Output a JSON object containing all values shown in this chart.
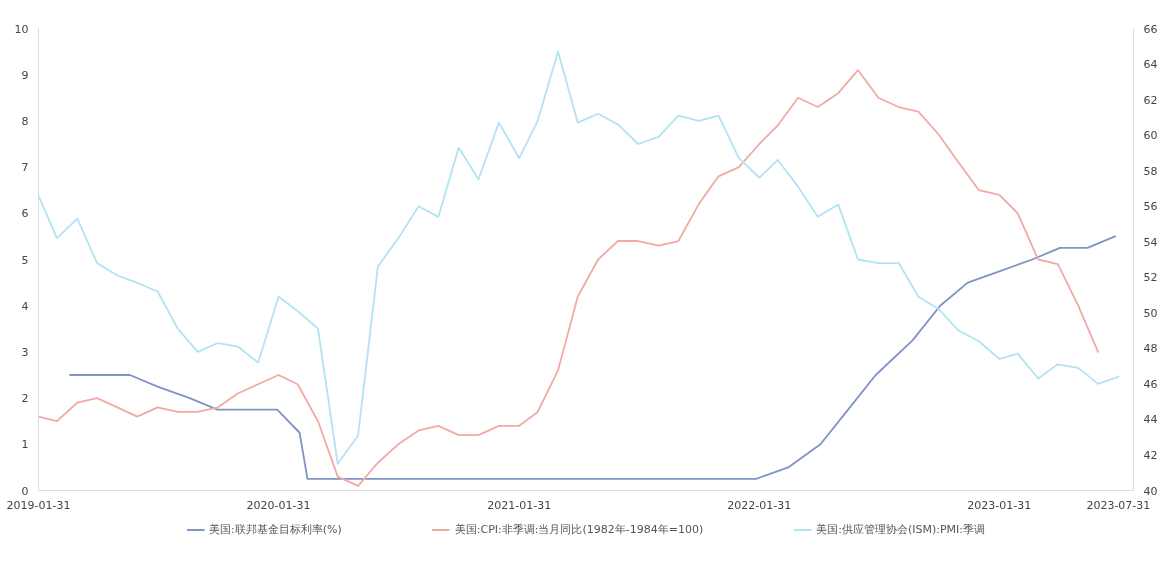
{
  "chart_data": {
    "type": "line",
    "x": [
      "2019-01-31",
      "2019-02-28",
      "2019-03-31",
      "2019-04-30",
      "2019-05-31",
      "2019-06-30",
      "2019-07-31",
      "2019-08-31",
      "2019-09-30",
      "2019-10-31",
      "2019-11-30",
      "2019-12-31",
      "2020-01-31",
      "2020-02-29",
      "2020-03-31",
      "2020-04-30",
      "2020-05-31",
      "2020-06-30",
      "2020-07-31",
      "2020-08-31",
      "2020-09-30",
      "2020-10-31",
      "2020-11-30",
      "2020-12-31",
      "2021-01-31",
      "2021-02-28",
      "2021-03-31",
      "2021-04-30",
      "2021-05-31",
      "2021-06-30",
      "2021-07-31",
      "2021-08-31",
      "2021-09-30",
      "2021-10-31",
      "2021-11-30",
      "2021-12-31",
      "2022-01-31",
      "2022-02-28",
      "2022-03-31",
      "2022-04-30",
      "2022-05-31",
      "2022-06-30",
      "2022-07-31",
      "2022-08-31",
      "2022-09-30",
      "2022-10-31",
      "2022-11-30",
      "2022-12-31",
      "2023-01-31",
      "2023-02-28",
      "2023-03-31",
      "2023-04-30",
      "2023-05-31",
      "2023-06-30",
      "2023-07-31"
    ],
    "series": [
      {
        "name": "美国:联邦基金目标利率(%)",
        "color": "#7f94c4",
        "x": [
          "2019-03-20",
          "2019-05-01",
          "2019-06-19",
          "2019-07-31",
          "2019-09-18",
          "2019-10-30",
          "2019-12-11",
          "2020-01-29",
          "2020-03-03",
          "2020-03-15",
          "2022-01-26",
          "2022-03-16",
          "2022-05-04",
          "2022-06-15",
          "2022-07-27",
          "2022-09-21",
          "2022-11-02",
          "2022-12-14",
          "2023-02-01",
          "2023-03-22",
          "2023-05-03",
          "2023-06-14",
          "2023-07-26"
        ],
        "values": [
          2.5,
          2.5,
          2.5,
          2.25,
          2.0,
          1.75,
          1.75,
          1.75,
          1.25,
          0.25,
          0.25,
          0.5,
          1.0,
          1.75,
          2.5,
          3.25,
          4.0,
          4.5,
          4.75,
          5.0,
          5.25,
          5.25,
          5.5
        ]
      },
      {
        "name": "美国:CPI:非季调:当月同比(1982年-1984年=100)",
        "color": "#f0aaa6",
        "values": [
          1.6,
          1.5,
          1.9,
          2.0,
          1.8,
          1.6,
          1.8,
          1.7,
          1.7,
          1.8,
          2.1,
          2.3,
          2.5,
          2.3,
          1.5,
          0.3,
          0.1,
          0.6,
          1.0,
          1.3,
          1.4,
          1.2,
          1.2,
          1.4,
          1.4,
          1.7,
          2.6,
          4.2,
          5.0,
          5.4,
          5.4,
          5.3,
          5.4,
          6.2,
          6.8,
          7.0,
          7.5,
          7.9,
          8.5,
          8.3,
          8.6,
          9.1,
          8.5,
          8.3,
          8.2,
          7.7,
          7.1,
          6.5,
          6.4,
          6.0,
          5.0,
          4.9,
          4.0,
          3.0,
          null
        ]
      },
      {
        "name": "美国:供应管理协会(ISM):PMI:季调",
        "color": "#b3e3f3",
        "axis": "y2",
        "values": [
          56.6,
          54.2,
          55.3,
          52.8,
          52.1,
          51.7,
          51.2,
          49.1,
          47.8,
          48.3,
          48.1,
          47.2,
          50.9,
          50.1,
          49.1,
          41.5,
          43.1,
          52.6,
          54.2,
          56.0,
          55.4,
          59.3,
          57.5,
          60.7,
          58.7,
          60.8,
          64.7,
          60.7,
          61.2,
          60.6,
          59.5,
          59.9,
          61.1,
          60.8,
          61.1,
          58.7,
          57.6,
          58.6,
          57.1,
          55.4,
          56.1,
          53.0,
          52.8,
          52.8,
          50.9,
          50.2,
          49.0,
          48.4,
          47.4,
          47.7,
          46.3,
          47.1,
          46.9,
          46.0,
          46.4
        ]
      }
    ],
    "xlim": [
      "2019-01-31",
      "2023-08-23"
    ],
    "xticks": [
      "2019-01-31",
      "2020-01-31",
      "2021-01-31",
      "2022-01-31",
      "2023-01-31",
      "2023-07-31"
    ],
    "ylim": [
      0,
      10
    ],
    "yticks": [
      0,
      1,
      2,
      3,
      4,
      5,
      6,
      7,
      8,
      9,
      10
    ],
    "y2lim": [
      40,
      66
    ],
    "y2ticks": [
      40,
      42,
      44,
      46,
      48,
      50,
      52,
      54,
      56,
      58,
      60,
      62,
      64,
      66
    ],
    "grid": false,
    "legend": "bottom",
    "marker": "none",
    "line_style": "solid"
  }
}
